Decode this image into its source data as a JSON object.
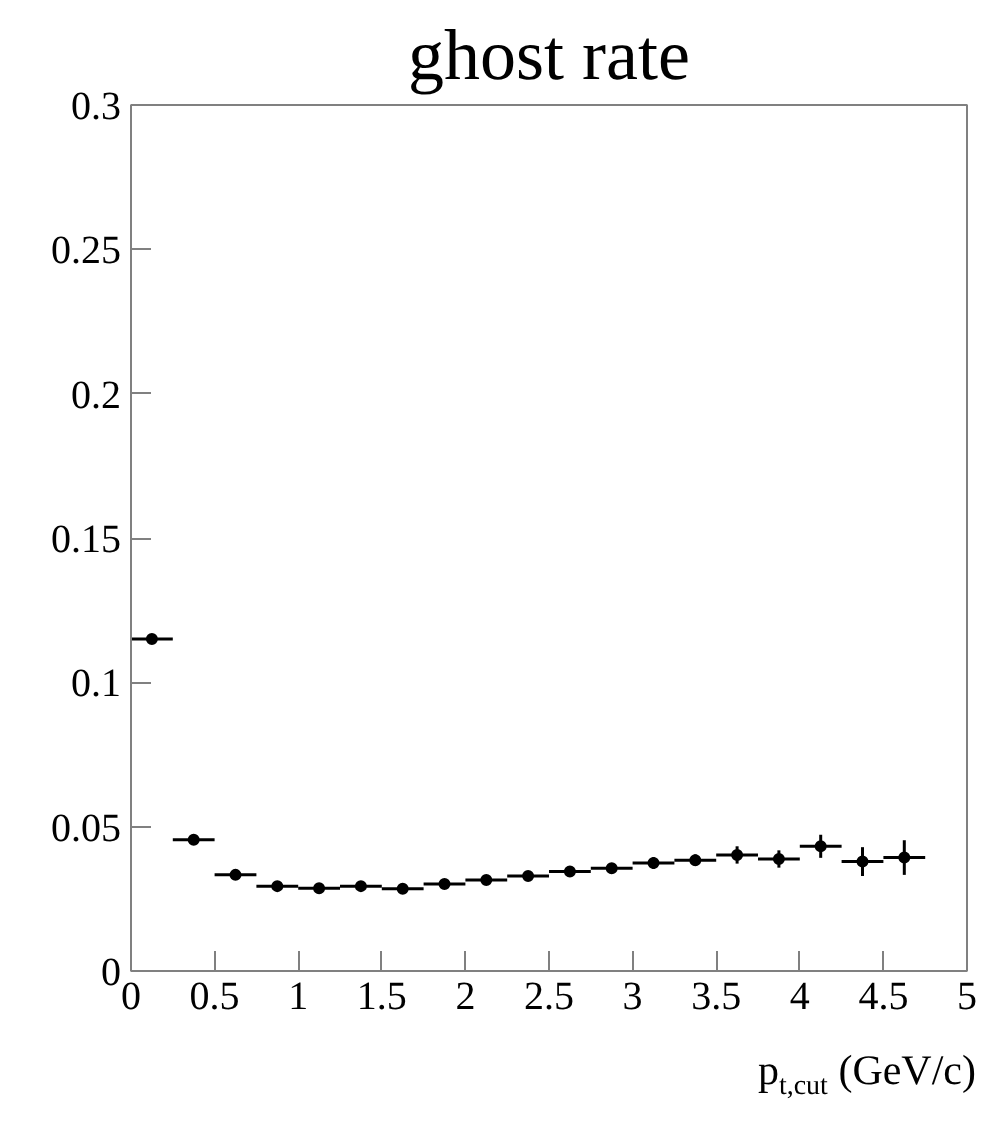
{
  "chart_data": {
    "type": "scatter",
    "title": "ghost rate",
    "xlabel": "p$_{t,cut}$ (GeV/c)",
    "x": [
      0.125,
      0.375,
      0.625,
      0.875,
      1.125,
      1.375,
      1.625,
      1.875,
      2.125,
      2.375,
      2.625,
      2.875,
      3.125,
      3.375,
      3.625,
      3.875,
      4.125,
      4.375,
      4.625
    ],
    "values": [
      0.115,
      0.0455,
      0.0333,
      0.0294,
      0.0287,
      0.0294,
      0.0285,
      0.0301,
      0.0315,
      0.0329,
      0.0345,
      0.0356,
      0.0374,
      0.0384,
      0.0402,
      0.0388,
      0.0432,
      0.0379,
      0.0393
    ],
    "errors": [
      0.001,
      0.001,
      0.001,
      0.001,
      0.001,
      0.001,
      0.001,
      0.001,
      0.001,
      0.001,
      0.001,
      0.001,
      0.002,
      0.002,
      0.003,
      0.003,
      0.004,
      0.005,
      0.006
    ],
    "xerrors": [
      0.125,
      0.125,
      0.125,
      0.125,
      0.125,
      0.125,
      0.125,
      0.125,
      0.125,
      0.125,
      0.125,
      0.125,
      0.125,
      0.125,
      0.125,
      0.125,
      0.125,
      0.125,
      0.125
    ],
    "color": "#000000",
    "marker": "circle",
    "xlim": [
      0,
      5
    ],
    "ylim": [
      0,
      0.3
    ],
    "xticks": [
      0,
      {
        "value": 0.5,
        "label": "0.5"
      },
      1,
      {
        "value": 1.5,
        "label": "1.5"
      },
      2,
      {
        "value": 2.5,
        "label": "2.5"
      },
      3,
      {
        "value": 3.5,
        "label": "3.5"
      },
      4,
      {
        "value": 4.5,
        "label": "4.5"
      },
      5
    ],
    "yticks": [
      0,
      0.05,
      0.1,
      0.15,
      0.2,
      0.25,
      0.3
    ],
    "grid": false
  }
}
